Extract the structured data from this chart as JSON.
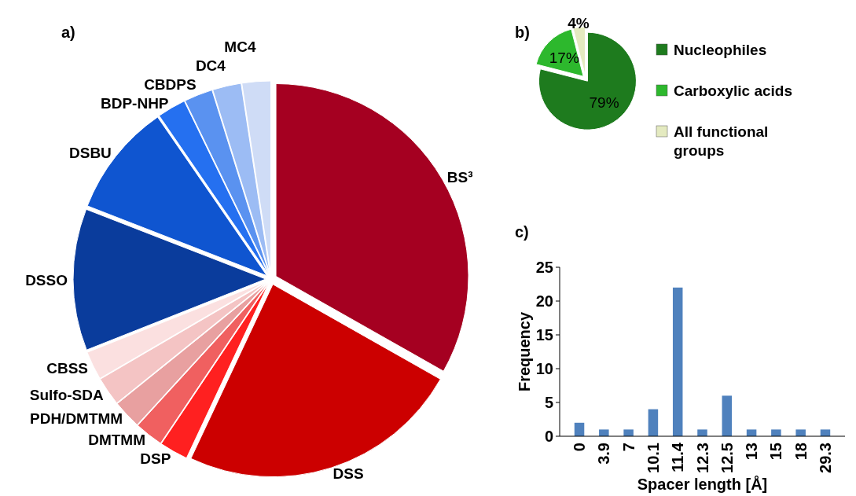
{
  "chart_data": [
    {
      "type": "pie",
      "title": "a)",
      "categories": [
        "BS³",
        "DSS",
        "DSP",
        "DMTMM",
        "PDH/DMTMM",
        "Sulfo-SDA",
        "CBSS",
        "DSSO",
        "DSBU",
        "BDP-NHP",
        "CBDPS",
        "DC4",
        "MC4"
      ],
      "values": [
        33.2,
        23.8,
        2.4,
        2.4,
        2.4,
        2.4,
        2.4,
        11.9,
        9.5,
        2.4,
        2.4,
        2.4,
        2.4
      ],
      "colors": [
        "#a50021",
        "#cc0000",
        "#ff2020",
        "#f06060",
        "#e8a0a0",
        "#f4c4c4",
        "#fbe0e0",
        "#0a3c9c",
        "#0f55d0",
        "#2570f0",
        "#5a92f0",
        "#9cbcf4",
        "#cfdcf6"
      ]
    },
    {
      "type": "pie",
      "title": "b)",
      "categories": [
        "Nucleophiles",
        "Carboxylic acids",
        "All functional groups"
      ],
      "values": [
        79,
        17,
        4
      ],
      "colors": [
        "#1e7b1e",
        "#2db82d",
        "#e4eac0"
      ],
      "value_labels": [
        "79%",
        "17%",
        "4%"
      ],
      "legend": "right"
    },
    {
      "type": "bar",
      "title": "c)",
      "categories": [
        "0",
        "3.9",
        "7",
        "10.1",
        "11.4",
        "12.3",
        "12.5",
        "13",
        "15",
        "18",
        "29.3"
      ],
      "values": [
        2,
        1,
        1,
        4,
        22,
        1,
        6,
        1,
        1,
        1,
        1
      ],
      "color": "#4f81bd",
      "xlabel": "Spacer length [Å]",
      "ylabel": "Frequency",
      "ylim": [
        0,
        25
      ],
      "yticks": [
        0,
        5,
        10,
        15,
        20,
        25
      ],
      "grid": false
    }
  ]
}
